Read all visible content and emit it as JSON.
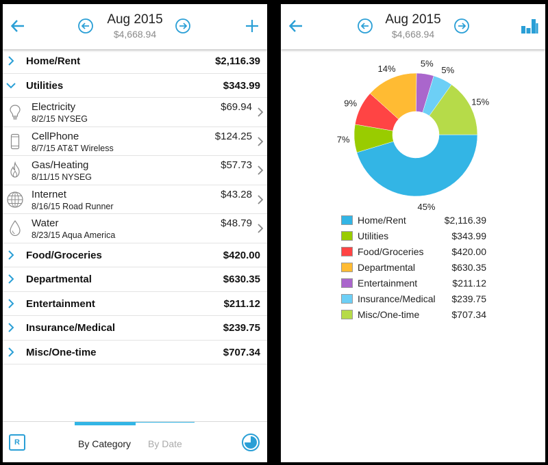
{
  "header": {
    "month": "Aug 2015",
    "total": "$4,668.94"
  },
  "categories": [
    {
      "name": "Home/Rent",
      "amount": "$2,116.39",
      "expanded": false
    },
    {
      "name": "Utilities",
      "amount": "$343.99",
      "expanded": true
    },
    {
      "name": "Food/Groceries",
      "amount": "$420.00",
      "expanded": false
    },
    {
      "name": "Departmental",
      "amount": "$630.35",
      "expanded": false
    },
    {
      "name": "Entertainment",
      "amount": "$211.12",
      "expanded": false
    },
    {
      "name": "Insurance/Medical",
      "amount": "$239.75",
      "expanded": false
    },
    {
      "name": "Misc/One-time",
      "amount": "$707.34",
      "expanded": false
    }
  ],
  "utilities_items": [
    {
      "name": "Electricity",
      "detail": "8/2/15 NYSEG",
      "amount": "$69.94",
      "icon": "lightbulb-icon"
    },
    {
      "name": "CellPhone",
      "detail": "8/7/15 AT&T Wireless",
      "amount": "$124.25",
      "icon": "phone-icon"
    },
    {
      "name": "Gas/Heating",
      "detail": "8/11/15 NYSEG",
      "amount": "$57.73",
      "icon": "flame-icon"
    },
    {
      "name": "Internet",
      "detail": "8/16/15 Road Runner",
      "amount": "$43.28",
      "icon": "globe-icon"
    },
    {
      "name": "Water",
      "detail": "8/23/15 Aqua America",
      "amount": "$48.79",
      "icon": "water-drop-icon"
    }
  ],
  "tabs": {
    "by_category": "By Category",
    "by_date": "By Date",
    "active": "by_category"
  },
  "buttons": {
    "recurring": "R"
  },
  "colors": {
    "accent": "#2a9fd6",
    "tab_indicator": "#33b5e5"
  },
  "chart_data": {
    "type": "pie",
    "style": "donut",
    "slices": [
      {
        "name": "Home/Rent",
        "amount": "$2,116.39",
        "value": 2116.39,
        "percent_label": "45%",
        "color": "#33b5e5"
      },
      {
        "name": "Utilities",
        "amount": "$343.99",
        "value": 343.99,
        "percent_label": "7%",
        "color": "#99cc00"
      },
      {
        "name": "Food/Groceries",
        "amount": "$420.00",
        "value": 420.0,
        "percent_label": "9%",
        "color": "#ff4444"
      },
      {
        "name": "Departmental",
        "amount": "$630.35",
        "value": 630.35,
        "percent_label": "14%",
        "color": "#ffbb33"
      },
      {
        "name": "Entertainment",
        "amount": "$211.12",
        "value": 211.12,
        "percent_label": "5%",
        "color": "#aa66cc"
      },
      {
        "name": "Insurance/Medical",
        "amount": "$239.75",
        "value": 239.75,
        "percent_label": "5%",
        "color": "#6dcff6"
      },
      {
        "name": "Misc/One-time",
        "amount": "$707.34",
        "value": 707.34,
        "percent_label": "15%",
        "color": "#b6db49"
      }
    ],
    "legend_position": "bottom"
  }
}
